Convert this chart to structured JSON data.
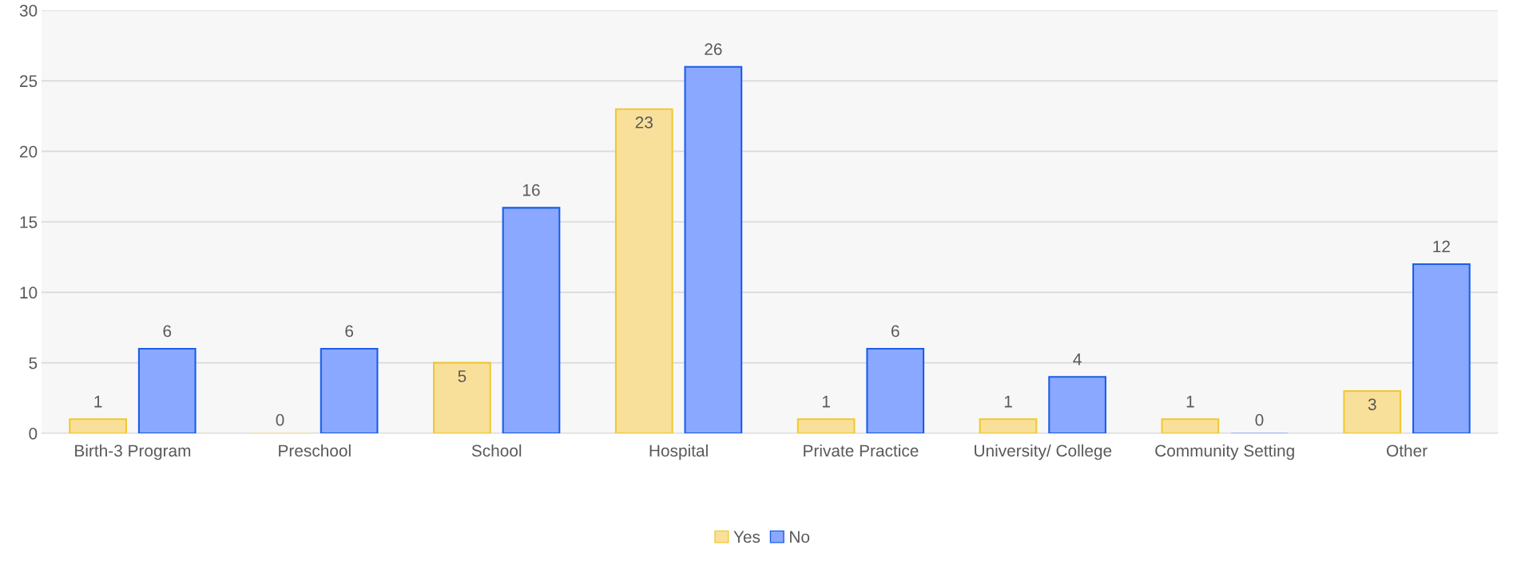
{
  "chart_data": {
    "type": "bar",
    "categories": [
      "Birth-3 Program",
      "Preschool",
      "School",
      "Hospital",
      "Private Practice",
      "University/ College",
      "Community Setting",
      "Other"
    ],
    "series": [
      {
        "name": "Yes",
        "color": "#f9e09a",
        "values": [
          1,
          0,
          5,
          23,
          1,
          1,
          1,
          3
        ]
      },
      {
        "name": "No",
        "color": "#8aa8ff",
        "values": [
          6,
          6,
          16,
          26,
          6,
          4,
          0,
          12
        ]
      }
    ],
    "ylim": [
      0,
      30
    ],
    "yticks": [
      0,
      5,
      10,
      15,
      20,
      25,
      30
    ],
    "grid": "y",
    "legend": "bottom",
    "data_labels": true
  }
}
